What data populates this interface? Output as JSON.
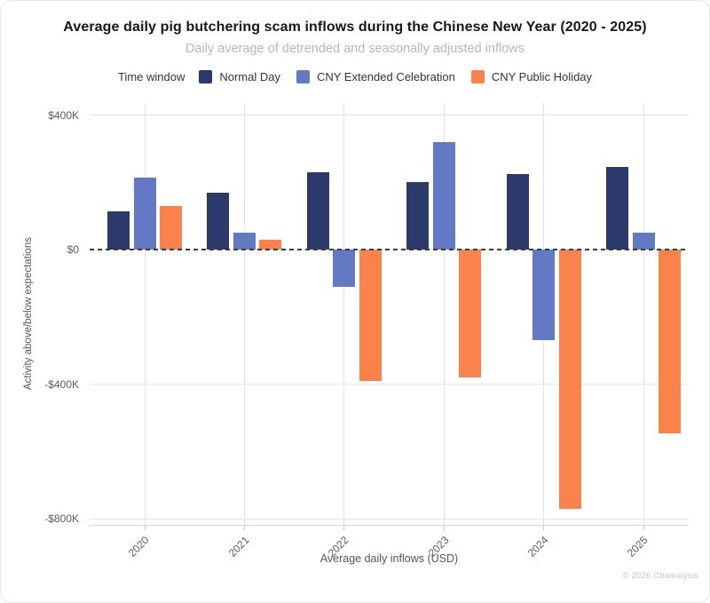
{
  "header": {
    "title": "Average daily pig butchering scam inflows during the Chinese New Year (2020 - 2025)",
    "subtitle": "Daily average of detrended and seasonally adjusted inflows"
  },
  "legend": {
    "title": "Time window"
  },
  "chart_data": {
    "type": "bar",
    "title": "Average daily pig butchering scam inflows during the Chinese New Year (2020 - 2025)",
    "subtitle": "Daily average of detrended and seasonally adjusted inflows",
    "categories": [
      "2020",
      "2021",
      "2022",
      "2023",
      "2024",
      "2025"
    ],
    "series": [
      {
        "name": "Normal Day",
        "color": "#2B3A6A",
        "values": [
          115000,
          170000,
          230000,
          200000,
          225000,
          245000
        ]
      },
      {
        "name": "CNY Extended Celebration",
        "color": "#6379C4",
        "values": [
          215000,
          50000,
          -110000,
          320000,
          -270000,
          50000
        ]
      },
      {
        "name": "CNY Public Holiday",
        "color": "#F9834A",
        "values": [
          130000,
          30000,
          -390000,
          -380000,
          -770000,
          -545000
        ]
      }
    ],
    "xlabel": "Average daily inflows (USD)",
    "ylabel": "Activity above/below expectations",
    "ylim": [
      -818000,
      436000
    ],
    "yticks": [
      {
        "value": 400000,
        "label": "$400K"
      },
      {
        "value": 0,
        "label": "$0"
      },
      {
        "value": -400000,
        "label": "-$400K"
      },
      {
        "value": -800000,
        "label": "-$800K"
      }
    ],
    "zero_line_dashed": true,
    "grid": true,
    "legend_position": "top"
  },
  "footer": {
    "copyright": "© 2026 Chainalysis"
  }
}
